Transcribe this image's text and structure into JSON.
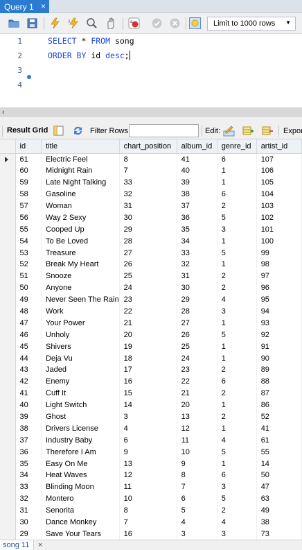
{
  "query_tab": {
    "label": "Query 1",
    "close": "×"
  },
  "toolbar": {
    "limit_label": "Limit to 1000 rows",
    "icons": [
      "folder-open-icon",
      "save-icon",
      "execute-icon",
      "execute-current-icon",
      "explain-icon",
      "stop-icon",
      "toggle-autocommit-icon",
      "commit-icon",
      "rollback-icon",
      "beautify-icon"
    ]
  },
  "editor": {
    "lines": [
      {
        "num": "1",
        "parts": [
          {
            "t": "SELECT",
            "kw": true
          },
          {
            "t": " * ",
            "kw": false
          },
          {
            "t": "FROM",
            "kw": true
          },
          {
            "t": " song",
            "kw": false
          }
        ]
      },
      {
        "num": "2",
        "parts": [
          {
            "t": "ORDER BY",
            "kw": true
          },
          {
            "t": " id ",
            "kw": false
          },
          {
            "t": "desc",
            "kw": true
          },
          {
            "t": ";",
            "kw": false
          }
        ]
      },
      {
        "num": "3",
        "parts": []
      },
      {
        "num": "4",
        "parts": []
      }
    ]
  },
  "result_toolbar": {
    "result_grid": "Result Grid",
    "filter_rows": "Filter Rows:",
    "edit": "Edit:",
    "export": "Expor"
  },
  "grid": {
    "columns": [
      "id",
      "title",
      "chart_position",
      "album_id",
      "genre_id",
      "artist_id"
    ],
    "rows": [
      [
        "61",
        "Electric Feel",
        "8",
        "41",
        "6",
        "107"
      ],
      [
        "60",
        "Midnight Rain",
        "7",
        "40",
        "1",
        "106"
      ],
      [
        "59",
        "Late Night Talking",
        "33",
        "39",
        "1",
        "105"
      ],
      [
        "58",
        "Gasoline",
        "32",
        "38",
        "6",
        "104"
      ],
      [
        "57",
        "Woman",
        "31",
        "37",
        "2",
        "103"
      ],
      [
        "56",
        "Way 2 Sexy",
        "30",
        "36",
        "5",
        "102"
      ],
      [
        "55",
        "Cooped Up",
        "29",
        "35",
        "3",
        "101"
      ],
      [
        "54",
        "To Be Loved",
        "28",
        "34",
        "1",
        "100"
      ],
      [
        "53",
        "Treasure",
        "27",
        "33",
        "5",
        "99"
      ],
      [
        "52",
        "Break My Heart",
        "26",
        "32",
        "1",
        "98"
      ],
      [
        "51",
        "Snooze",
        "25",
        "31",
        "2",
        "97"
      ],
      [
        "50",
        "Anyone",
        "24",
        "30",
        "2",
        "96"
      ],
      [
        "49",
        "Never Seen The Rain",
        "23",
        "29",
        "4",
        "95"
      ],
      [
        "48",
        "Work",
        "22",
        "28",
        "3",
        "94"
      ],
      [
        "47",
        "Your Power",
        "21",
        "27",
        "1",
        "93"
      ],
      [
        "46",
        "Unholy",
        "20",
        "26",
        "5",
        "92"
      ],
      [
        "45",
        "Shivers",
        "19",
        "25",
        "1",
        "91"
      ],
      [
        "44",
        "Deja Vu",
        "18",
        "24",
        "1",
        "90"
      ],
      [
        "43",
        "Jaded",
        "17",
        "23",
        "2",
        "89"
      ],
      [
        "42",
        "Enemy",
        "16",
        "22",
        "6",
        "88"
      ],
      [
        "41",
        "Cuff It",
        "15",
        "21",
        "2",
        "87"
      ],
      [
        "40",
        "Light Switch",
        "14",
        "20",
        "1",
        "86"
      ],
      [
        "39",
        "Ghost",
        "3",
        "13",
        "2",
        "52"
      ],
      [
        "38",
        "Drivers License",
        "4",
        "12",
        "1",
        "41"
      ],
      [
        "37",
        "Industry Baby",
        "6",
        "11",
        "4",
        "61"
      ],
      [
        "36",
        "Therefore I Am",
        "9",
        "10",
        "5",
        "55"
      ],
      [
        "35",
        "Easy On Me",
        "13",
        "9",
        "1",
        "14"
      ],
      [
        "34",
        "Heat Waves",
        "12",
        "8",
        "6",
        "50"
      ],
      [
        "33",
        "Blinding Moon",
        "11",
        "7",
        "3",
        "47"
      ],
      [
        "32",
        "Montero",
        "10",
        "6",
        "5",
        "63"
      ],
      [
        "31",
        "Senorita",
        "8",
        "5",
        "2",
        "49"
      ],
      [
        "30",
        "Dance Monkey",
        "7",
        "4",
        "4",
        "38"
      ],
      [
        "29",
        "Save Your Tears",
        "16",
        "3",
        "3",
        "73"
      ]
    ]
  },
  "result_tab": {
    "label": "song 11",
    "close": "×"
  }
}
